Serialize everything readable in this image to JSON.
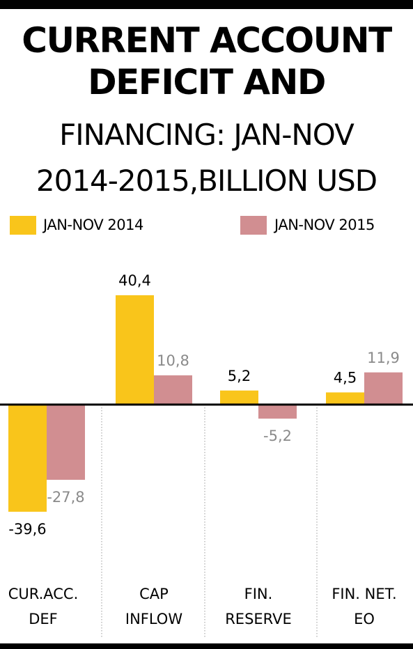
{
  "title": {
    "line1": "CURRENT ACCOUNT",
    "line2": "DEFICIT AND",
    "line3": "FINANCING: JAN-NOV",
    "line4": "2014-2015,BILLION USD"
  },
  "colors": {
    "series_2014": "#f9c51b",
    "series_2015": "#d18e91",
    "label_2015": "#8a8a8a"
  },
  "chart_data": {
    "type": "bar",
    "title": "CURRENT ACCOUNT DEFICIT AND FINANCING: JAN-NOV 2014-2015,BILLION USD",
    "categories": [
      [
        "CUR.ACC.",
        "DEF"
      ],
      [
        "CAP",
        "INFLOW"
      ],
      [
        "FIN.",
        "RESERVE"
      ],
      [
        "FIN. NET.",
        "EO"
      ]
    ],
    "series": [
      {
        "name": "JAN-NOV 2014",
        "values": [
          -39.6,
          40.4,
          5.2,
          4.5
        ],
        "labels": [
          "-39,6",
          "40,4",
          "5,2",
          "4,5"
        ]
      },
      {
        "name": "JAN-NOV 2015",
        "values": [
          -27.8,
          10.8,
          -5.2,
          11.9
        ],
        "labels": [
          "-27,8",
          "10,8",
          "-5,2",
          "11,9"
        ]
      }
    ],
    "ylim": [
      -45,
      45
    ],
    "grid": false,
    "legend": "top"
  }
}
